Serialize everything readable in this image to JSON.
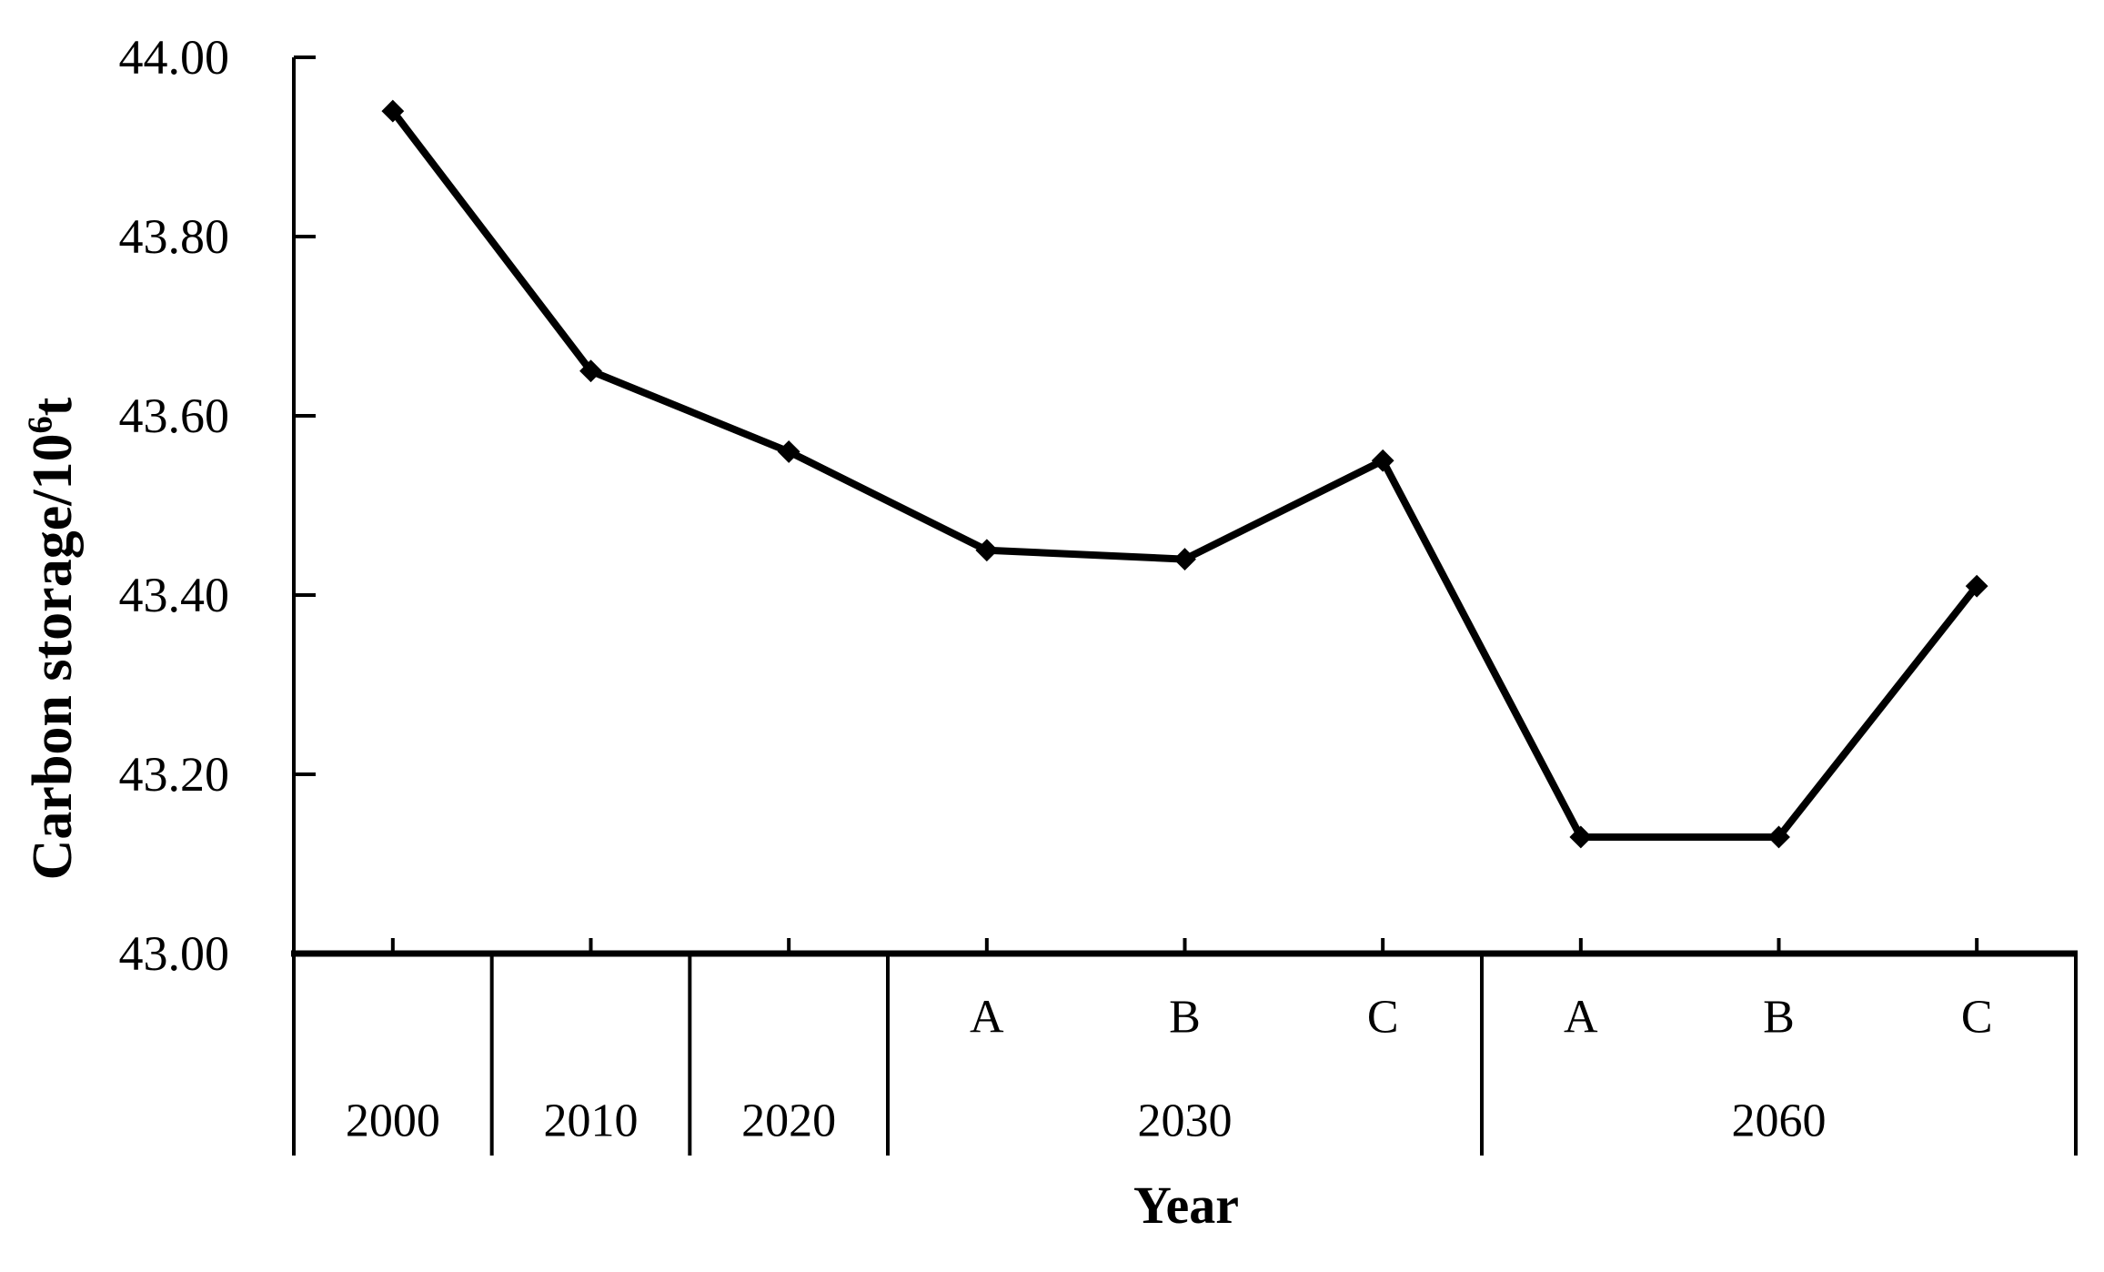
{
  "chart_data": {
    "type": "line",
    "title": "",
    "xlabel": "Year",
    "ylabel": "Carbon storage/10^6 t",
    "ylabel_parts": {
      "prefix": "Carbon storage/10",
      "sup": "6",
      "suffix": "t"
    },
    "ylim": [
      43.0,
      44.0
    ],
    "ytick_step": 0.2,
    "ytick_labels": [
      "43.00",
      "43.20",
      "43.40",
      "43.60",
      "43.80",
      "44.00"
    ],
    "x_groups": [
      {
        "label": "2000",
        "subs": [
          null
        ]
      },
      {
        "label": "2010",
        "subs": [
          null
        ]
      },
      {
        "label": "2020",
        "subs": [
          null
        ]
      },
      {
        "label": "2030",
        "subs": [
          "A",
          "B",
          "C"
        ]
      },
      {
        "label": "2060",
        "subs": [
          "A",
          "B",
          "C"
        ]
      }
    ],
    "categories": [
      "2000",
      "2010",
      "2020",
      "2030-A",
      "2030-B",
      "2030-C",
      "2060-A",
      "2060-B",
      "2060-C"
    ],
    "series": [
      {
        "name": "Carbon storage",
        "values": [
          43.94,
          43.65,
          43.56,
          43.45,
          43.44,
          43.55,
          43.13,
          43.13,
          43.41
        ]
      }
    ],
    "marker": "diamond",
    "line_color": "#000000",
    "text_color": "#000000",
    "background": "#ffffff",
    "grid": false,
    "legend": "none",
    "tick_style": "inside"
  }
}
